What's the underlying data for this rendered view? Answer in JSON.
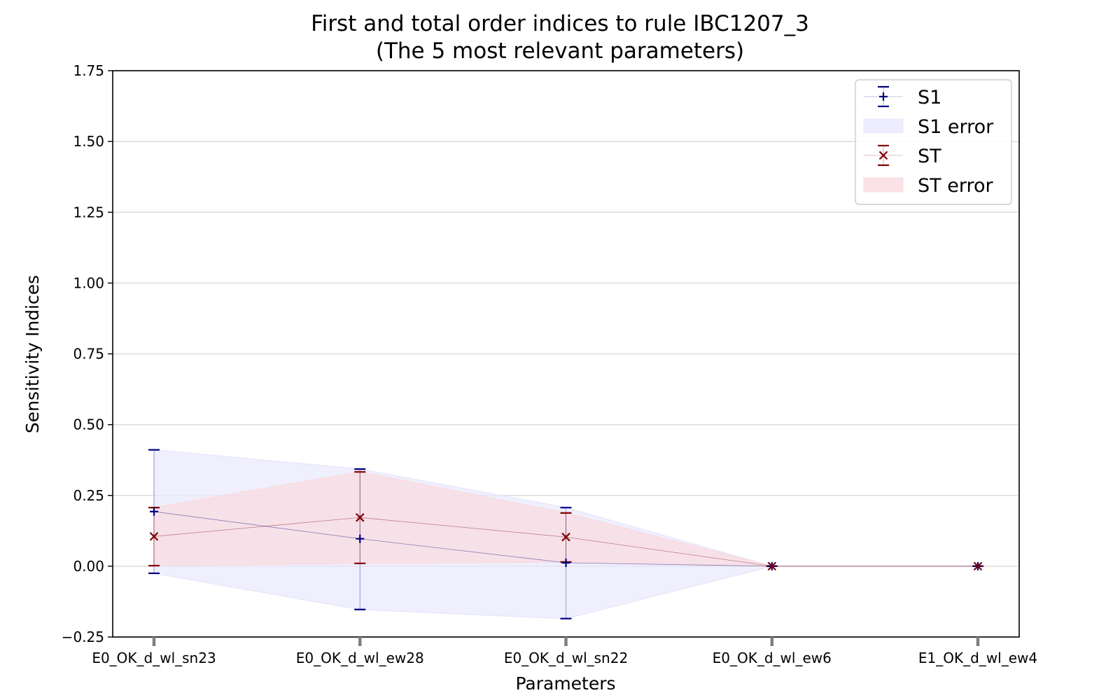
{
  "chart_data": {
    "type": "line",
    "title": "First and total order indices to rule IBC1207_3",
    "subtitle": "(The 5 most relevant parameters)",
    "xlabel": "Parameters",
    "ylabel": "Sensitivity Indices",
    "ylim": [
      -0.25,
      1.75
    ],
    "yticks": [
      -0.25,
      0.0,
      0.25,
      0.5,
      0.75,
      1.0,
      1.25,
      1.5,
      1.75
    ],
    "ytick_labels": [
      "−0.25",
      "0.00",
      "0.25",
      "0.50",
      "0.75",
      "1.00",
      "1.25",
      "1.50",
      "1.75"
    ],
    "grid": "horizontal",
    "legend_position": "top-right",
    "categories": [
      "E0_OK_d_wl_sn23",
      "E0_OK_d_wl_ew28",
      "E0_OK_d_wl_sn22",
      "E0_OK_d_wl_ew6",
      "E1_OK_d_wl_ew4"
    ],
    "series": [
      {
        "name": "S1",
        "error_name": "S1 error",
        "marker": "+",
        "color": "#00007f",
        "fill_color": "#e8e8fc",
        "values": [
          0.193,
          0.097,
          0.012,
          0.0,
          0.0
        ],
        "lower": [
          -0.025,
          -0.153,
          -0.185,
          0.0,
          0.0
        ],
        "upper": [
          0.411,
          0.343,
          0.207,
          0.0,
          0.0
        ]
      },
      {
        "name": "ST",
        "error_name": "ST error",
        "marker": "x",
        "color": "#7f0000",
        "fill_color": "#fadbe0",
        "values": [
          0.105,
          0.172,
          0.103,
          0.0,
          0.0
        ],
        "lower": [
          0.002,
          0.01,
          0.015,
          0.0,
          0.0
        ],
        "upper": [
          0.207,
          0.333,
          0.188,
          0.0,
          0.0
        ]
      }
    ]
  }
}
